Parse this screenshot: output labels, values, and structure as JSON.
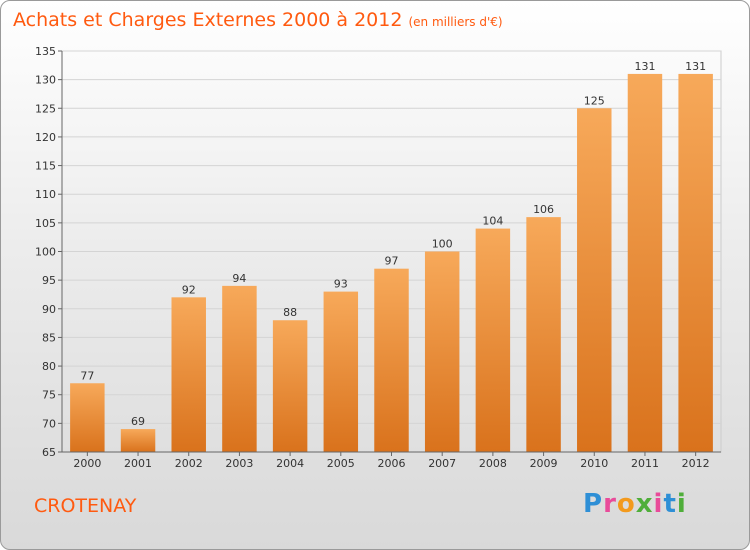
{
  "title": "Achats et Charges Externes 2000 à 2012",
  "subtitle": "(en milliers d'€)",
  "place": "CROTENAY",
  "logo": "Proxiti",
  "chart_data": {
    "type": "bar",
    "title": "Achats et Charges Externes 2000 à 2012",
    "subtitle": "(en milliers d'€)",
    "categories": [
      "2000",
      "2001",
      "2002",
      "2003",
      "2004",
      "2005",
      "2006",
      "2007",
      "2008",
      "2009",
      "2010",
      "2011",
      "2012"
    ],
    "values": [
      77,
      69,
      92,
      94,
      88,
      93,
      97,
      100,
      104,
      106,
      125,
      131,
      131
    ],
    "ylim": [
      65,
      135
    ],
    "yticks": [
      65,
      70,
      75,
      80,
      85,
      90,
      95,
      100,
      105,
      110,
      115,
      120,
      125,
      130,
      135
    ],
    "grid": true,
    "colors": {
      "bar_top": "#f7a95a",
      "bar_bottom": "#d9721c",
      "title": "#ff5a10"
    }
  }
}
